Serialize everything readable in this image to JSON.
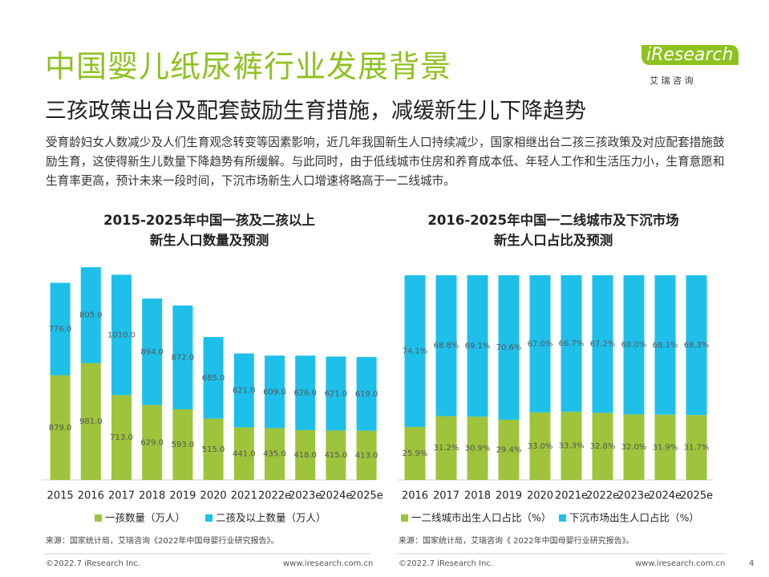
{
  "header": {
    "title": "中国婴儿纸尿裤行业发展背景",
    "subtitle": "三孩政策出台及配套鼓励生育措施，减缓新生儿下降趋势",
    "logo": "iResearch",
    "logo_sub": "艾 瑞 咨 询"
  },
  "body": "受育龄妇女人数减少及人们生育观念转变等因素影响，近几年我国新生人口持续减少，国家相继出台二孩三孩政策及对应配套措施鼓励生育，这使得新生儿数量下降趋势有所缓解。与此同时，由于低线城市住房和养育成本低、年轻人工作和生活压力小，生育意愿和生育率更高，预计未来一段时间，下沉市场新生人口增速将略高于一二线城市。",
  "chart_data": [
    {
      "type": "bar",
      "stacked": true,
      "title": "2015-2025年中国一孩及二孩以上\n新生人口数量及预测",
      "categories": [
        "2015",
        "2016",
        "2017",
        "2018",
        "2019",
        "2020",
        "2021",
        "2022e",
        "2023e",
        "2024e",
        "2025e"
      ],
      "series": [
        {
          "name": "一孩数量（万人）",
          "color": "#9dc43b",
          "values": [
            879,
            981,
            713,
            629,
            593,
            515,
            441,
            435,
            418,
            415,
            413
          ],
          "value_labels": [
            "879.0",
            "981.0",
            "713.0",
            "629.0",
            "593.0",
            "515.0",
            "441.0",
            "435.0",
            "418.0",
            "415.0",
            "413.0"
          ]
        },
        {
          "name": "二孩及以上数量（万人）",
          "color": "#1ec0ea",
          "values": [
            776,
            805,
            1010,
            894,
            872,
            685,
            621,
            609,
            626,
            621,
            619
          ],
          "value_labels": [
            "776.0",
            "805.0",
            "1010.0",
            "894.0",
            "872.0",
            "685.0",
            "621.0",
            "609.0",
            "626.0",
            "621.0",
            "619.0"
          ]
        }
      ],
      "source": "来源：国家统计局，艾瑞咨询《2022年中国母婴行业研究报告》。"
    },
    {
      "type": "bar",
      "stacked": true,
      "title": "2016-2025年中国一二线城市及下沉市场\n新生人口占比及预测",
      "categories": [
        "2016",
        "2017",
        "2018",
        "2019",
        "2020",
        "2021e",
        "2022e",
        "2023e",
        "2024e",
        "2025e"
      ],
      "series": [
        {
          "name": "一二线城市出生人口占比（%）",
          "color": "#9dc43b",
          "values": [
            25.9,
            31.2,
            30.9,
            29.4,
            33.0,
            33.3,
            32.8,
            32.0,
            31.9,
            31.7
          ],
          "value_labels": [
            "25.9%",
            "31.2%",
            "30.9%",
            "29.4%",
            "33.0%",
            "33.3%",
            "32.8%",
            "32.0%",
            "31.9%",
            "31.7%"
          ]
        },
        {
          "name": "下沉市场出生人口占比（%）",
          "color": "#1ec0ea",
          "values": [
            74.1,
            68.8,
            69.1,
            70.6,
            67.0,
            66.7,
            67.2,
            68.0,
            68.1,
            68.3
          ],
          "value_labels": [
            "74.1%",
            "68.8%",
            "69.1%",
            "70.6%",
            "67.0%",
            "66.7%",
            "67.2%",
            "68.0%",
            "68.1%",
            "68.3%"
          ]
        }
      ],
      "source": "来源：国家统计局，艾瑞咨询《 2022年中国母婴行业研究报告》。"
    }
  ],
  "footer": {
    "left_copyright": "©2022.7 iResearch Inc.",
    "left_url": "www.iresearch.com.cn",
    "right_copyright": "©2022.7 iResearch Inc.",
    "right_url": "www.iresearch.com.cn",
    "page": "4"
  }
}
